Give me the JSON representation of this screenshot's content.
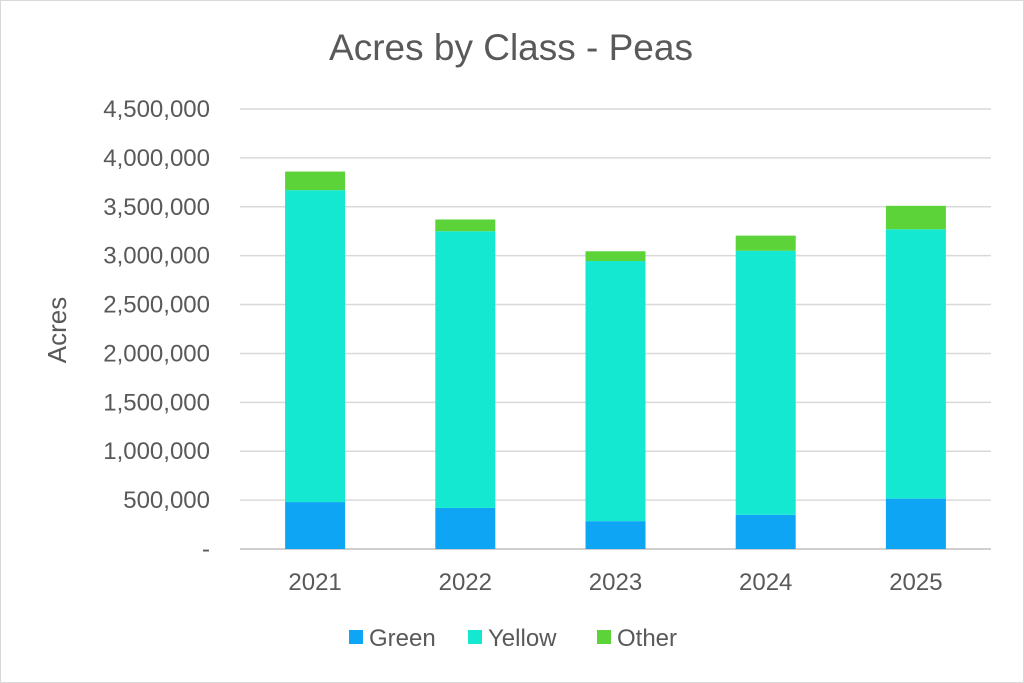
{
  "chart_data": {
    "type": "bar",
    "stacked": true,
    "title": "Acres by Class - Peas",
    "xlabel": "",
    "ylabel": "Acres",
    "ylim": [
      0,
      4500000
    ],
    "yticks": [
      0,
      500000,
      1000000,
      1500000,
      2000000,
      2500000,
      3000000,
      3500000,
      4000000,
      4500000
    ],
    "ytick_labels": [
      "-",
      "500,000",
      "1,000,000",
      "1,500,000",
      "2,000,000",
      "2,500,000",
      "3,000,000",
      "3,500,000",
      "4,000,000",
      "4,500,000"
    ],
    "categories": [
      "2021",
      "2022",
      "2023",
      "2024",
      "2025"
    ],
    "series": [
      {
        "name": "Green",
        "color": "#0ea5f5",
        "values": [
          480000,
          420000,
          285000,
          350000,
          515000
        ]
      },
      {
        "name": "Yellow",
        "color": "#14e8d0",
        "values": [
          3190000,
          2830000,
          2660000,
          2700000,
          2755000
        ]
      },
      {
        "name": "Other",
        "color": "#5dd33a",
        "values": [
          190000,
          120000,
          100000,
          155000,
          240000
        ]
      }
    ],
    "grid": true,
    "legend_position": "bottom"
  }
}
